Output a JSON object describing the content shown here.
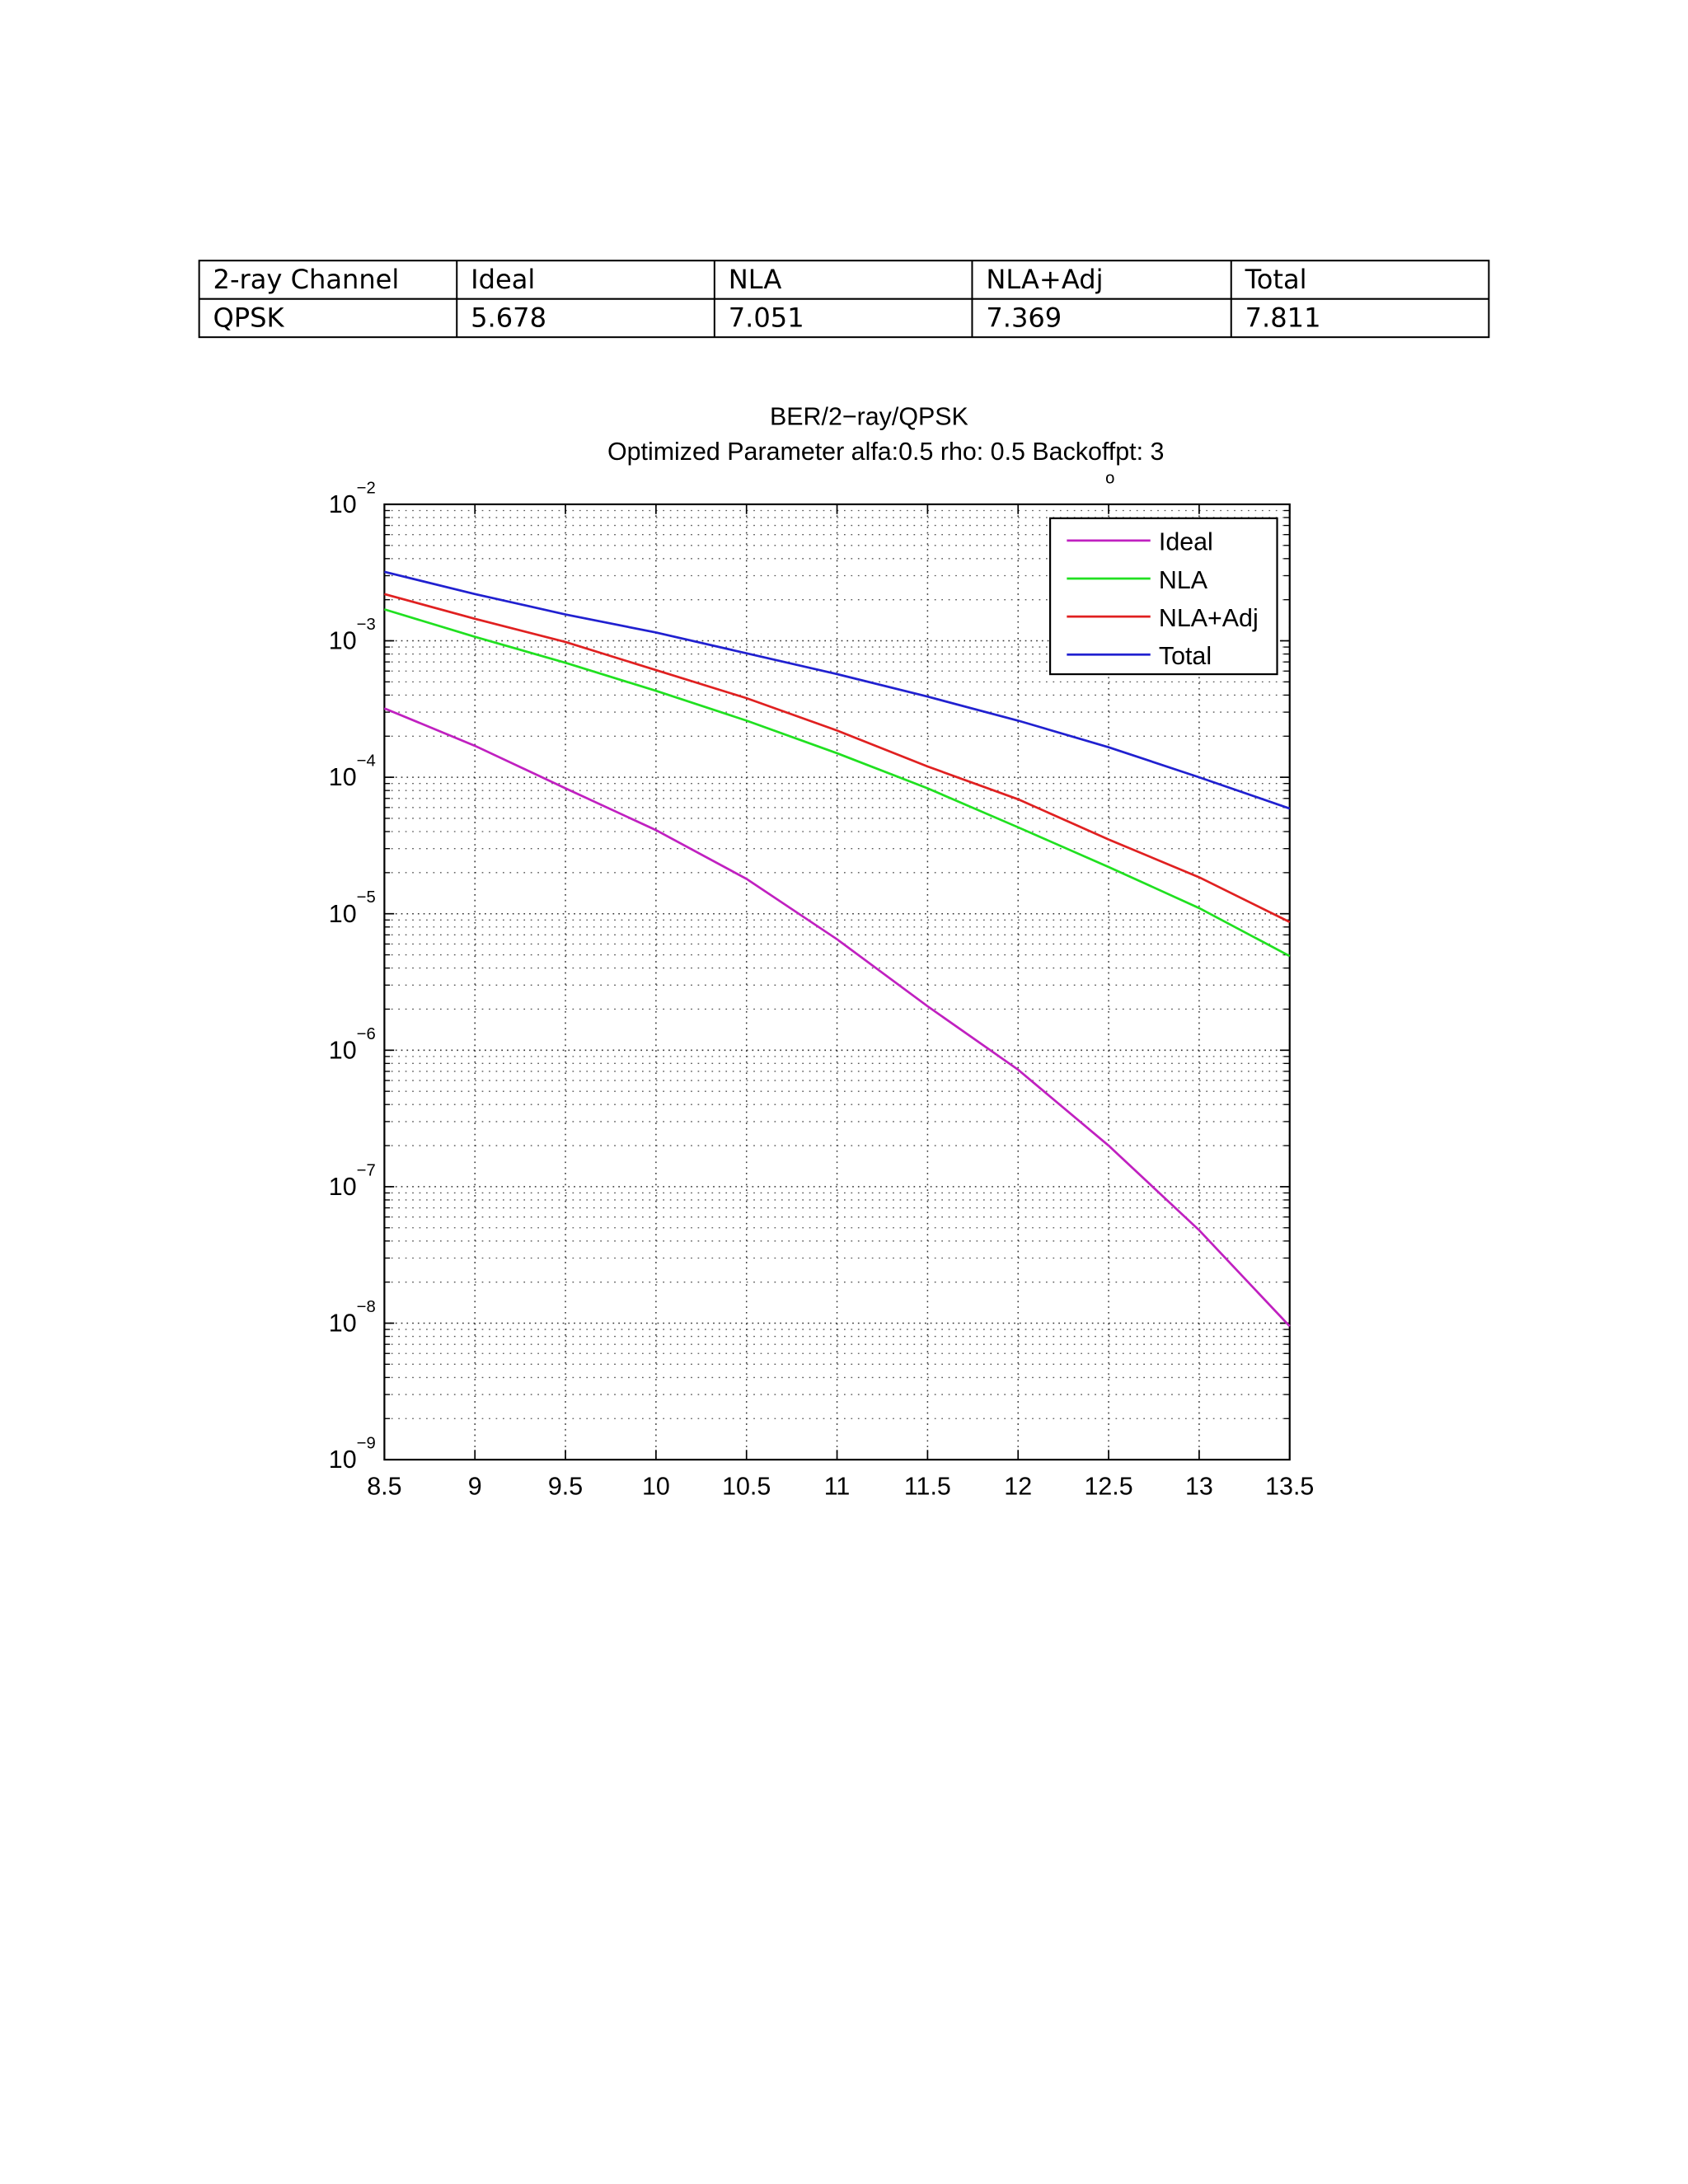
{
  "table": {
    "rows": [
      [
        "2-ray Channel",
        "Ideal",
        "NLA",
        "NLA+Adj",
        "Total"
      ],
      [
        "QPSK",
        "5.678",
        "7.051",
        "7.369",
        "7.811"
      ]
    ]
  },
  "chart_data": {
    "type": "line",
    "title": "BER/2−ray/QPSK",
    "subtitle": "Optimized Parameter alfa:0.5 rho: 0.5 Backoffpt: 3",
    "annotation": "o",
    "x": [
      8.5,
      9,
      9.5,
      10,
      10.5,
      11,
      11.5,
      12,
      12.5,
      13,
      13.5
    ],
    "series": [
      {
        "name": "Ideal",
        "color": "#c020c0",
        "values": [
          0.00032,
          0.00017,
          8.3e-05,
          4.1e-05,
          1.8e-05,
          6.5e-06,
          2.1e-06,
          7.2e-07,
          2e-07,
          4.8e-08,
          9.5e-09
        ]
      },
      {
        "name": "NLA",
        "color": "#20e020",
        "values": [
          0.0017,
          0.00107,
          0.00069,
          0.00043,
          0.00026,
          0.00015,
          8.3e-05,
          4.3e-05,
          2.2e-05,
          1.1e-05,
          4.9e-06
        ]
      },
      {
        "name": "NLA+Adj",
        "color": "#e02020",
        "values": [
          0.0022,
          0.00145,
          0.00098,
          0.00061,
          0.00038,
          0.00022,
          0.00012,
          6.9e-05,
          3.5e-05,
          1.85e-05,
          8.7e-06
        ]
      },
      {
        "name": "Total",
        "color": "#2020d0",
        "values": [
          0.0032,
          0.0022,
          0.00156,
          0.00115,
          0.00081,
          0.00057,
          0.00039,
          0.00026,
          0.000166,
          0.0001,
          5.9e-05
        ]
      }
    ],
    "xlim": [
      8.5,
      13.5
    ],
    "ylim": [
      1e-09,
      0.01
    ],
    "xticks": [
      8.5,
      9,
      9.5,
      10,
      10.5,
      11,
      11.5,
      12,
      12.5,
      13,
      13.5
    ],
    "yticks": [
      {
        "value": 1e-09,
        "label": "10−9"
      },
      {
        "value": 1e-08,
        "label": "10−8"
      },
      {
        "value": 1e-07,
        "label": "10−7"
      },
      {
        "value": 1e-06,
        "label": "10−6"
      },
      {
        "value": 1e-05,
        "label": "10−5"
      },
      {
        "value": 0.0001,
        "label": "10−4"
      },
      {
        "value": 0.001,
        "label": "10−3"
      },
      {
        "value": 0.01,
        "label": "10−2"
      }
    ],
    "log_y": true,
    "grid": true,
    "legend": "upper right"
  }
}
